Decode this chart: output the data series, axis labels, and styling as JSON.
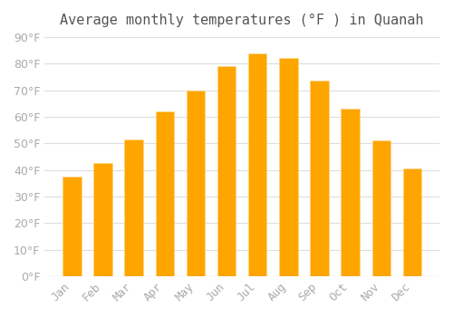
{
  "title": "Average monthly temperatures (°F ) in Quanah",
  "months": [
    "Jan",
    "Feb",
    "Mar",
    "Apr",
    "May",
    "Jun",
    "Jul",
    "Aug",
    "Sep",
    "Oct",
    "Nov",
    "Dec"
  ],
  "values": [
    37.5,
    42.5,
    51.5,
    62.0,
    70.0,
    79.0,
    84.0,
    82.0,
    73.5,
    63.0,
    51.0,
    40.5
  ],
  "bar_color": "#FFA500",
  "bar_edge_color": "#FFD580",
  "background_color": "#FFFFFF",
  "grid_color": "#DDDDDD",
  "text_color": "#AAAAAA",
  "title_color": "#555555",
  "ylim": [
    0,
    90
  ],
  "yticks": [
    0,
    10,
    20,
    30,
    40,
    50,
    60,
    70,
    80,
    90
  ],
  "ylabel_suffix": "°F",
  "title_fontsize": 11,
  "tick_fontsize": 9
}
